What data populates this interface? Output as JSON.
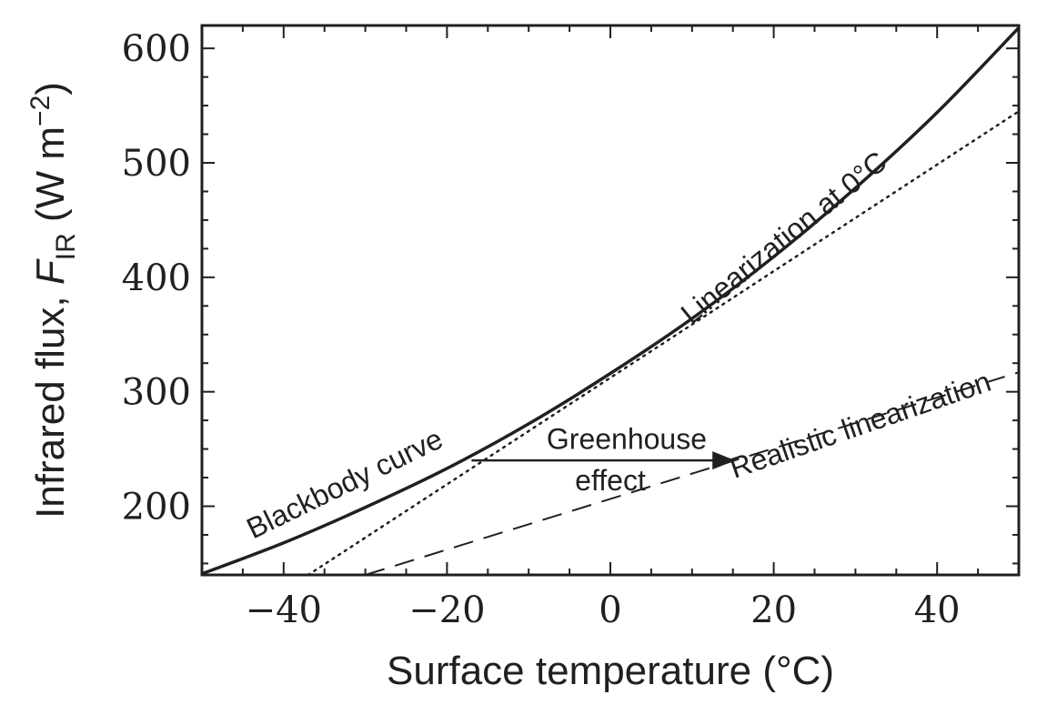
{
  "chart_data": {
    "type": "line",
    "xlabel": "Surface temperature (°C)",
    "ylabel": "Infrared flux, F",
    "ylabel_parts": {
      "prefix": "Infrared flux, ",
      "symbol": "F",
      "subscript": "IR",
      "units_open": " (W m",
      "units_exp": "−2",
      "units_close": ")"
    },
    "xlim": [
      -50,
      50
    ],
    "ylim": [
      140,
      620
    ],
    "x_ticks": [
      -40,
      -20,
      0,
      20,
      40
    ],
    "x_tick_labels": [
      "−40",
      "−20",
      "0",
      "20",
      "40"
    ],
    "y_ticks": [
      200,
      300,
      400,
      500,
      600
    ],
    "y_tick_labels": [
      "200",
      "300",
      "400",
      "500",
      "600"
    ],
    "grid": false,
    "legend": "none",
    "series": [
      {
        "name": "Blackbody curve",
        "style": "solid",
        "x": [
          -50,
          -40,
          -30,
          -20,
          -10,
          0,
          10,
          20,
          30,
          40,
          50
        ],
        "y": [
          141,
          168,
          199,
          233,
          272,
          316,
          364,
          418,
          478,
          544,
          618
        ]
      },
      {
        "name": "Linearization at 0°C",
        "style": "dotted",
        "x": [
          -37,
          50
        ],
        "y": [
          140,
          545
        ]
      },
      {
        "name": "Realistic linearization",
        "style": "dashed",
        "x": [
          -30,
          50
        ],
        "y": [
          140,
          317
        ]
      }
    ],
    "annotations": [
      {
        "text": "Blackbody curve",
        "x": -32,
        "y": 212,
        "rotate": -26
      },
      {
        "text": "Linearization at 0°C",
        "x": 22,
        "y": 428,
        "rotate": -39
      },
      {
        "text": "Realistic linearization",
        "x": 31,
        "y": 263,
        "rotate": -19
      },
      {
        "text": "Greenhouse",
        "x": 2,
        "y": 250,
        "rotate": 0
      },
      {
        "text": "effect",
        "x": 0,
        "y": 214,
        "rotate": 0
      }
    ],
    "arrow": {
      "from": [
        -17,
        240
      ],
      "to": [
        15,
        240
      ]
    }
  },
  "colors": {
    "ink": "#231f20",
    "background": "#ffffff"
  }
}
